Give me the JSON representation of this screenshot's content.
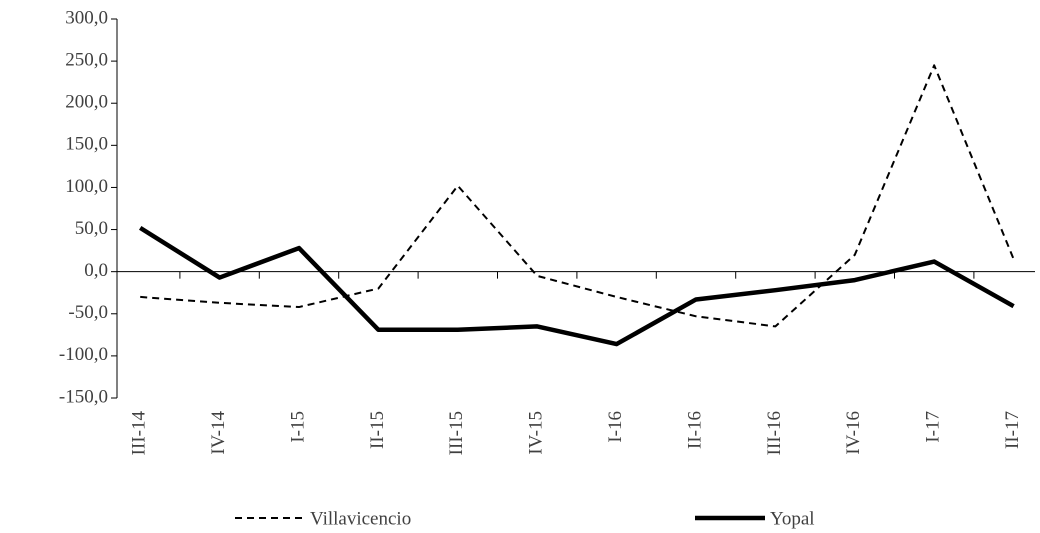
{
  "chart_data": {
    "type": "line",
    "categories": [
      "III-14",
      "IV-14",
      "I-15",
      "II-15",
      "III-15",
      "IV-15",
      "I-16",
      "II-16",
      "III-16",
      "IV-16",
      "I-17",
      "II-17"
    ],
    "series": [
      {
        "name": "Villavicencio",
        "color": "#000000",
        "dash": true,
        "values": [
          -30,
          -37,
          -42,
          -20,
          102,
          -5,
          -30,
          -53,
          -65,
          20,
          245,
          15
        ]
      },
      {
        "name": "Yopal",
        "color": "#000000",
        "dash": false,
        "values": [
          52,
          -7,
          28,
          -69,
          -69,
          -65,
          -86,
          -33,
          -22,
          -10,
          12,
          -41
        ]
      }
    ],
    "ylim": [
      -150,
      300
    ],
    "yticks": [
      {
        "value": -150,
        "label": "-150,0"
      },
      {
        "value": -100,
        "label": "-100,0"
      },
      {
        "value": -50,
        "label": "-50,0"
      },
      {
        "value": 0,
        "label": "0,0"
      },
      {
        "value": 50,
        "label": "50,0"
      },
      {
        "value": 100,
        "label": "100,0"
      },
      {
        "value": 150,
        "label": "150,0"
      },
      {
        "value": 200,
        "label": "200,0"
      },
      {
        "value": 250,
        "label": "250,0"
      },
      {
        "value": 300,
        "label": "300,0"
      }
    ],
    "legend": "bottom"
  }
}
